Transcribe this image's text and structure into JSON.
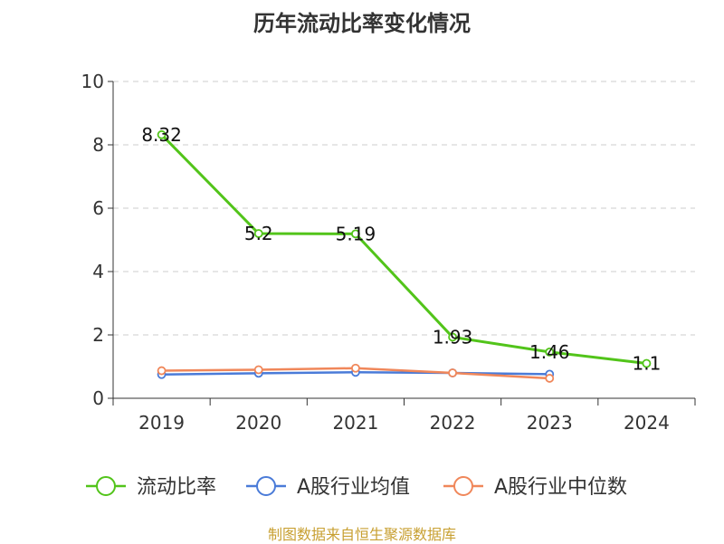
{
  "colors": {
    "series_0": "#52c41a",
    "series_1": "#4a7bd8",
    "series_2": "#f0875a",
    "grid": "#cccccc",
    "axis": "#333333",
    "source": "#c8a032"
  },
  "chart_data": {
    "type": "line",
    "title": "历年流动比率变化情况",
    "categories": [
      "2019",
      "2020",
      "2021",
      "2022",
      "2023",
      "2024"
    ],
    "ylim": [
      0,
      10
    ],
    "y_ticks": [
      0,
      2,
      4,
      6,
      8,
      10
    ],
    "grid": true,
    "legend_position": "bottom",
    "series": [
      {
        "name": "流动比率",
        "values": [
          8.32,
          5.2,
          5.19,
          1.93,
          1.46,
          1.1
        ],
        "labels": [
          "8.32",
          "5.2",
          "5.19",
          "1.93",
          "1.46",
          "1.1"
        ]
      },
      {
        "name": "A股行业均值",
        "values": [
          0.75,
          0.79,
          0.82,
          0.8,
          0.76,
          null
        ]
      },
      {
        "name": "A股行业中位数",
        "values": [
          0.87,
          0.9,
          0.95,
          0.8,
          0.63,
          null
        ]
      }
    ],
    "source_note": "制图数据来自恒生聚源数据库"
  }
}
